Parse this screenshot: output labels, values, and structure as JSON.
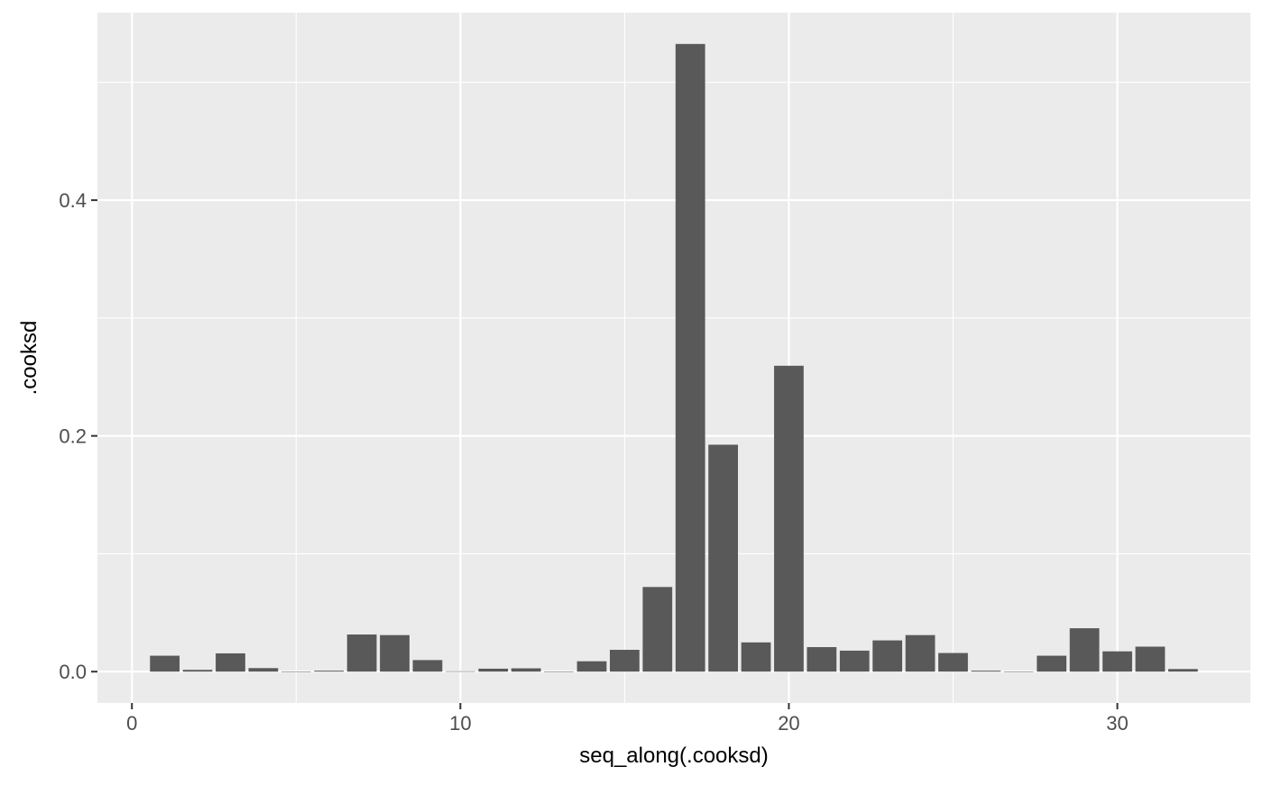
{
  "chart_data": {
    "type": "bar",
    "xlabel": "seq_along(.cooksd)",
    "ylabel": ".cooksd",
    "x": [
      1,
      2,
      3,
      4,
      5,
      6,
      7,
      8,
      9,
      10,
      11,
      12,
      13,
      14,
      15,
      16,
      17,
      18,
      19,
      20,
      21,
      22,
      23,
      24,
      25,
      26,
      27,
      28,
      29,
      30,
      31,
      32
    ],
    "values": [
      0.0135,
      0.0015,
      0.0155,
      0.003,
      0.0,
      0.0008,
      0.0315,
      0.031,
      0.0098,
      0.0003,
      0.0025,
      0.0028,
      0.0,
      0.0088,
      0.0185,
      0.0718,
      0.5325,
      0.1925,
      0.0248,
      0.2595,
      0.0208,
      0.0178,
      0.0265,
      0.031,
      0.0158,
      0.0008,
      0.0,
      0.0135,
      0.0368,
      0.0172,
      0.0212,
      0.0022
    ],
    "xlim": [
      -1.05,
      34.05
    ],
    "ylim": [
      -0.0266,
      0.5591
    ],
    "x_ticks": [
      0,
      10,
      20,
      30
    ],
    "x_tick_labels": [
      "0",
      "10",
      "20",
      "30"
    ],
    "y_ticks": [
      0.0,
      0.2,
      0.4
    ],
    "y_tick_labels": [
      "0.0",
      "0.2",
      "0.4"
    ],
    "grid": true,
    "legend": "none",
    "colors": {
      "panel": "#EBEBEB",
      "bar": "#595959",
      "grid": "#FFFFFF",
      "tick_label": "#4D4D4D",
      "tick_mark": "#333333"
    }
  }
}
